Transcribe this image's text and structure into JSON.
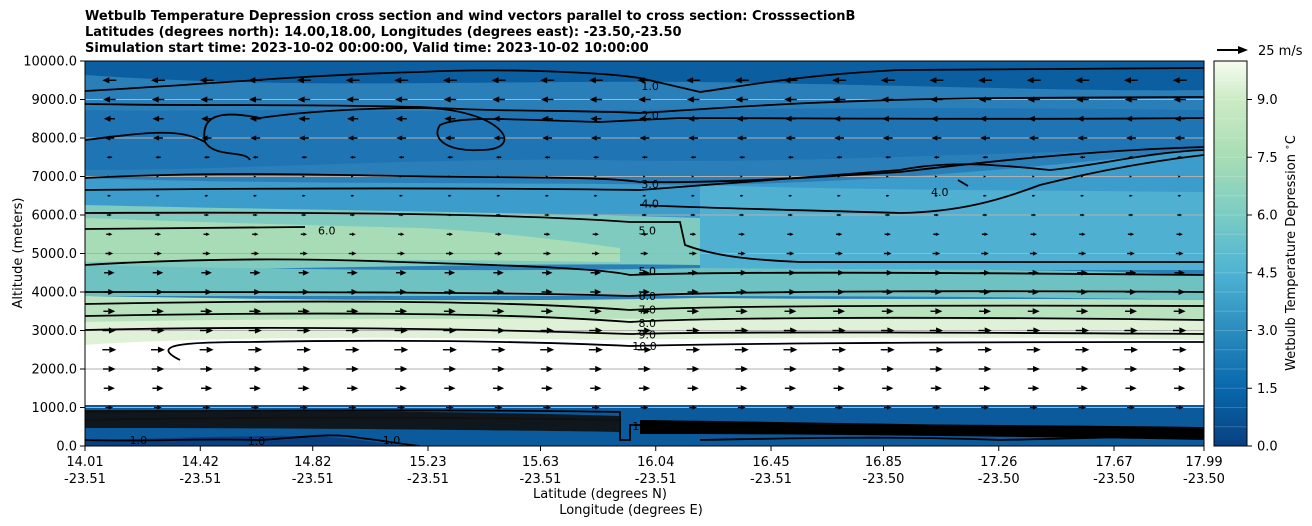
{
  "chart_data": {
    "type": "contour",
    "title_lines": [
      "Wetbulb Temperature Depression cross section and wind vectors parallel to cross section: CrosssectionB",
      "Latitudes (degrees north): 14.00,18.00, Longitudes (degrees east): -23.50,-23.50",
      "Simulation start time: 2023-10-02 00:00:00, Valid time: 2023-10-02 10:00:00"
    ],
    "ylabel": "Altitude (meters)",
    "xlabel_lines": [
      "Latitude (degrees N)",
      "Longitude (degrees E)"
    ],
    "ylim": [
      0,
      10000
    ],
    "xlim": [
      14.01,
      17.99
    ],
    "y_ticks": [
      "0.0",
      "1000.0",
      "2000.0",
      "3000.0",
      "4000.0",
      "5000.0",
      "6000.0",
      "7000.0",
      "8000.0",
      "9000.0",
      "10000.0"
    ],
    "x_ticks": [
      {
        "lat": "14.01",
        "lon": "-23.51"
      },
      {
        "lat": "14.42",
        "lon": "-23.51"
      },
      {
        "lat": "14.82",
        "lon": "-23.51"
      },
      {
        "lat": "15.23",
        "lon": "-23.51"
      },
      {
        "lat": "15.63",
        "lon": "-23.51"
      },
      {
        "lat": "16.04",
        "lon": "-23.51"
      },
      {
        "lat": "16.45",
        "lon": "-23.51"
      },
      {
        "lat": "16.85",
        "lon": "-23.50"
      },
      {
        "lat": "17.26",
        "lon": "-23.50"
      },
      {
        "lat": "17.67",
        "lon": "-23.50"
      },
      {
        "lat": "17.99",
        "lon": "-23.50"
      }
    ],
    "grid": "horizontal",
    "colorbar": {
      "label": "Wetbulb Temperature Depression $^\\circ$C",
      "min": 0,
      "max": 10,
      "step": 0.5,
      "tick_labels": [
        "0.0",
        "1.5",
        "3.0",
        "4.5",
        "6.0",
        "7.5",
        "9.0"
      ],
      "colormap": "GnBu_r",
      "low_color": "#084081",
      "high_color": "#f7fcf0"
    },
    "quiver_key": {
      "label": "25 m/s"
    },
    "contour_labels": [
      {
        "text": "1.0",
        "x": 16.02,
        "y": 9350
      },
      {
        "text": "2.0",
        "x": 16.02,
        "y": 8600
      },
      {
        "text": "3.0",
        "x": 16.02,
        "y": 6800
      },
      {
        "text": "4.0",
        "x": 16.02,
        "y": 6300
      },
      {
        "text": "5.0",
        "x": 16.01,
        "y": 5600
      },
      {
        "text": "6.0",
        "x": 14.87,
        "y": 5600
      },
      {
        "text": "5.0",
        "x": 16.01,
        "y": 4550
      },
      {
        "text": "6.0",
        "x": 16.01,
        "y": 3900
      },
      {
        "text": "7.0",
        "x": 16.01,
        "y": 3550
      },
      {
        "text": "8.0",
        "x": 16.01,
        "y": 3200
      },
      {
        "text": "9.0",
        "x": 16.01,
        "y": 2900
      },
      {
        "text": "10.0",
        "x": 16.0,
        "y": 2600
      },
      {
        "text": "4.0",
        "x": 17.05,
        "y": 6600
      },
      {
        "text": "1.0",
        "x": 14.2,
        "y": 150
      },
      {
        "text": "1.0",
        "x": 14.62,
        "y": 130
      },
      {
        "text": "1.0",
        "x": 15.1,
        "y": 150
      },
      {
        "text": "10.0",
        "x": 16.0,
        "y": 520
      }
    ],
    "contour_levels": [
      1,
      2,
      3,
      4,
      5,
      6,
      7,
      8,
      9,
      10
    ],
    "wind_rows": [
      {
        "altitude": 9500,
        "u": -1.0
      },
      {
        "altitude": 9000,
        "u": -0.9
      },
      {
        "altitude": 8500,
        "u": -0.8
      },
      {
        "altitude": 8000,
        "u": -0.7
      },
      {
        "altitude": 7500,
        "u": -0.4
      },
      {
        "altitude": 7000,
        "u": 0.15
      },
      {
        "altitude": 6500,
        "u": 0.25
      },
      {
        "altitude": 6000,
        "u": 0.35
      },
      {
        "altitude": 5500,
        "u": 0.45
      },
      {
        "altitude": 5000,
        "u": 0.55
      },
      {
        "altitude": 4500,
        "u": 0.75
      },
      {
        "altitude": 4000,
        "u": 0.8
      },
      {
        "altitude": 3500,
        "u": 0.85
      },
      {
        "altitude": 3000,
        "u": 0.95
      },
      {
        "altitude": 2500,
        "u": 1.0
      },
      {
        "altitude": 2000,
        "u": 0.9
      },
      {
        "altitude": 1500,
        "u": 0.8
      },
      {
        "altitude": 1000,
        "u": 0.55
      }
    ]
  }
}
